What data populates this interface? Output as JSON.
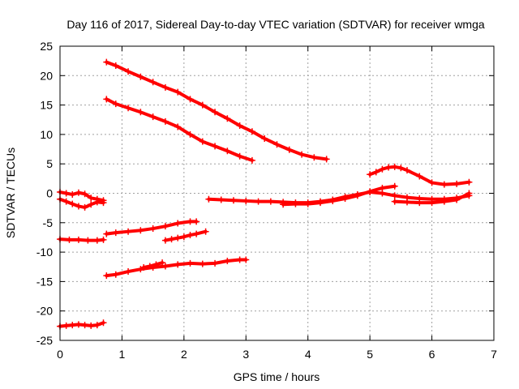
{
  "chart_data": {
    "type": "scatter",
    "title": "Day 116 of 2017, Sidereal Day-to-day VTEC variation (SDTVAR) for receiver wmga",
    "xlabel": "GPS time / hours",
    "ylabel": "SDTVAR / TECUs",
    "xlim": [
      0,
      7
    ],
    "ylim": [
      -25,
      25
    ],
    "x_ticks": [
      0,
      1,
      2,
      3,
      4,
      5,
      6,
      7
    ],
    "y_ticks": [
      -25,
      -20,
      -15,
      -10,
      -5,
      0,
      5,
      10,
      15,
      20,
      25
    ],
    "grid": true,
    "marker_color": "#ff0000",
    "series": [
      {
        "x": [
          0.75,
          0.9,
          1.1,
          1.3,
          1.5,
          1.7,
          1.9,
          2.1,
          2.3,
          2.5,
          2.7,
          2.9,
          3.1,
          3.3,
          3.5,
          3.7,
          3.9,
          4.1,
          4.3
        ],
        "y": [
          22.3,
          21.7,
          20.7,
          19.8,
          18.9,
          18.0,
          17.2,
          16.0,
          15.0,
          13.8,
          12.7,
          11.5,
          10.5,
          9.3,
          8.3,
          7.4,
          6.6,
          6.1,
          5.8
        ]
      },
      {
        "x": [
          0.75,
          0.9,
          1.1,
          1.3,
          1.5,
          1.7,
          1.9,
          2.1,
          2.3,
          2.5,
          2.7,
          2.9,
          3.1
        ],
        "y": [
          16.0,
          15.2,
          14.5,
          13.8,
          13.0,
          12.2,
          11.3,
          10.0,
          8.8,
          8.0,
          7.2,
          6.3,
          5.6
        ]
      },
      {
        "x": [
          0.0,
          0.1,
          0.2,
          0.3,
          0.4,
          0.5,
          0.6,
          0.7
        ],
        "y": [
          0.2,
          0.0,
          -0.2,
          0.1,
          -0.1,
          -0.8,
          -1.0,
          -1.2
        ]
      },
      {
        "x": [
          0.0,
          0.1,
          0.2,
          0.3,
          0.4,
          0.5,
          0.6,
          0.7
        ],
        "y": [
          -1.0,
          -1.4,
          -1.8,
          -2.2,
          -2.4,
          -1.9,
          -1.5,
          -1.6
        ]
      },
      {
        "x": [
          0.0,
          0.15,
          0.3,
          0.45,
          0.6,
          0.7
        ],
        "y": [
          -7.8,
          -7.9,
          -7.9,
          -8.0,
          -8.0,
          -7.9
        ]
      },
      {
        "x": [
          0.75,
          0.9,
          1.1,
          1.3,
          1.5,
          1.7,
          1.9,
          2.1,
          2.2
        ],
        "y": [
          -6.9,
          -6.7,
          -6.5,
          -6.3,
          -6.0,
          -5.6,
          -5.1,
          -4.8,
          -4.8
        ]
      },
      {
        "x": [
          1.7,
          1.8,
          1.9,
          2.0,
          2.1,
          2.2,
          2.35
        ],
        "y": [
          -8.0,
          -7.8,
          -7.6,
          -7.4,
          -7.1,
          -6.9,
          -6.5
        ]
      },
      {
        "x": [
          0.75,
          0.9,
          1.1,
          1.3,
          1.5,
          1.7,
          1.9,
          2.1,
          2.3,
          2.5,
          2.7,
          2.9,
          3.0
        ],
        "y": [
          -14.0,
          -13.8,
          -13.3,
          -12.9,
          -12.6,
          -12.4,
          -12.1,
          -11.9,
          -12.0,
          -11.9,
          -11.5,
          -11.3,
          -11.3
        ]
      },
      {
        "x": [
          1.35,
          1.45,
          1.55,
          1.65
        ],
        "y": [
          -12.6,
          -12.4,
          -12.1,
          -11.8
        ]
      },
      {
        "x": [
          0.0,
          0.1,
          0.2,
          0.3,
          0.4,
          0.5,
          0.6,
          0.7
        ],
        "y": [
          -22.6,
          -22.5,
          -22.4,
          -22.3,
          -22.4,
          -22.5,
          -22.4,
          -22.0
        ]
      },
      {
        "x": [
          2.4,
          2.6,
          2.8,
          3.0,
          3.2,
          3.4,
          3.6,
          3.8,
          4.0,
          4.2,
          4.4,
          4.6,
          4.8,
          5.0,
          5.2,
          5.4,
          5.6,
          5.8,
          6.0,
          6.2,
          6.4,
          6.6
        ],
        "y": [
          -1.0,
          -1.1,
          -1.2,
          -1.3,
          -1.4,
          -1.4,
          -1.5,
          -1.6,
          -1.6,
          -1.4,
          -1.1,
          -0.6,
          -0.2,
          0.2,
          0.0,
          -0.4,
          -0.7,
          -0.9,
          -1.0,
          -1.0,
          -0.8,
          -0.4
        ]
      },
      {
        "x": [
          3.6,
          3.8,
          4.0,
          4.2,
          4.4,
          4.6,
          4.8,
          5.0,
          5.2,
          5.4
        ],
        "y": [
          -1.9,
          -1.8,
          -1.8,
          -1.6,
          -1.3,
          -0.9,
          -0.4,
          0.3,
          0.9,
          1.2
        ]
      },
      {
        "x": [
          5.0,
          5.1,
          5.2,
          5.3,
          5.4,
          5.5,
          5.6,
          5.8,
          6.0,
          6.2,
          6.4,
          6.6
        ],
        "y": [
          3.2,
          3.6,
          4.1,
          4.4,
          4.5,
          4.3,
          3.9,
          2.9,
          1.8,
          1.5,
          1.6,
          1.9
        ]
      },
      {
        "x": [
          5.4,
          5.6,
          5.8,
          6.0,
          6.2,
          6.4,
          6.6
        ],
        "y": [
          -1.4,
          -1.5,
          -1.6,
          -1.6,
          -1.4,
          -1.1,
          0.0
        ]
      }
    ]
  }
}
